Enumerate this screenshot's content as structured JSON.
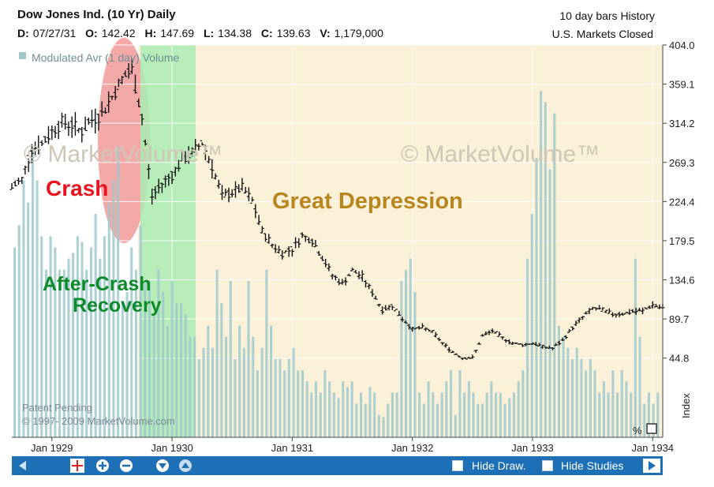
{
  "header": {
    "title": "Dow Jones Ind.  (10 Yr) Daily",
    "right_line1": "10 day bars  History",
    "right_line2": "U.S. Markets Closed",
    "ohlc": [
      {
        "key": "D:",
        "value": "07/27/31"
      },
      {
        "key": "O:",
        "value": "142.42"
      },
      {
        "key": "H:",
        "value": "147.69"
      },
      {
        "key": "L:",
        "value": "134.38"
      },
      {
        "key": "C:",
        "value": "139.63"
      },
      {
        "key": "V:",
        "value": "1,179,000"
      }
    ]
  },
  "legend_label": "Modulated Avr (1 day) Volume",
  "watermark": "© MarketVolume™",
  "patent_line1": "Patent Pending",
  "patent_line2": "© 1997- 2009 MarketVolume.com",
  "percent_label": "%",
  "index_label": "Index",
  "annotations": [
    {
      "text": "Crash",
      "color": "#e8131f"
    },
    {
      "text": "After-Crash",
      "color": "#0d8a2a"
    },
    {
      "text": "Recovery",
      "color": "#0d8a2a"
    },
    {
      "text": "Great Depression",
      "color": "#b8861e"
    }
  ],
  "toolbar": {
    "hide_draw_label": "Hide Draw.",
    "hide_studies_label": "Hide Studies"
  },
  "colors": {
    "plot_bg": "#fbf0d8",
    "crash_region": "#f29a9a",
    "recovery_region": "#a9ecb4",
    "volume_bar": "#9fc9cc",
    "price_bar": "#111111",
    "toolbar": "#1d6fb6"
  },
  "chart_data": {
    "type": "bar",
    "subtype": "ohlc_price_with_volume",
    "title": "Dow Jones Ind.  (10 Yr) Daily",
    "x_tick_labels": [
      "Jan 1929",
      "Jan 1930",
      "Jan 1931",
      "Jan 1932",
      "Jan 1933",
      "Jan 1934"
    ],
    "x_range": [
      "1928-09",
      "1934-02"
    ],
    "y_tick_labels": [
      "404.0",
      "359.1",
      "314.2",
      "269.3",
      "224.4",
      "179.5",
      "134.6",
      "89.7",
      "44.8"
    ],
    "y_ticks": [
      404.0,
      359.1,
      314.2,
      269.3,
      224.4,
      179.5,
      134.6,
      89.7,
      44.8
    ],
    "ylim": [
      -46,
      404
    ],
    "ylabel": "Index",
    "grid": true,
    "regions": [
      {
        "label": "Crash",
        "start": "1929-09",
        "end": "1929-11"
      },
      {
        "label": "After-Crash Recovery",
        "start": "1929-11",
        "end": "1930-05"
      },
      {
        "label": "Great Depression",
        "start": "1930-05",
        "end": "1934-02"
      }
    ],
    "price_series": [
      {
        "x": "1928-09",
        "close": 240
      },
      {
        "x": "1928-10",
        "close": 250
      },
      {
        "x": "1928-11",
        "close": 285
      },
      {
        "x": "1928-12",
        "close": 290
      },
      {
        "x": "1929-01",
        "close": 305
      },
      {
        "x": "1929-02",
        "close": 315
      },
      {
        "x": "1929-03",
        "close": 312
      },
      {
        "x": "1929-04",
        "close": 305
      },
      {
        "x": "1929-05",
        "close": 318
      },
      {
        "x": "1929-06",
        "close": 325
      },
      {
        "x": "1929-07",
        "close": 345
      },
      {
        "x": "1929-08",
        "close": 365
      },
      {
        "x": "1929-09",
        "close": 375
      },
      {
        "x": "1929-10",
        "close": 320
      },
      {
        "x": "1929-11",
        "close": 230
      },
      {
        "x": "1929-12",
        "close": 245
      },
      {
        "x": "1930-01",
        "close": 255
      },
      {
        "x": "1930-02",
        "close": 272
      },
      {
        "x": "1930-03",
        "close": 280
      },
      {
        "x": "1930-04",
        "close": 292
      },
      {
        "x": "1930-05",
        "close": 265
      },
      {
        "x": "1930-06",
        "close": 230
      },
      {
        "x": "1930-07",
        "close": 235
      },
      {
        "x": "1930-08",
        "close": 240
      },
      {
        "x": "1930-09",
        "close": 225
      },
      {
        "x": "1930-10",
        "close": 190
      },
      {
        "x": "1930-11",
        "close": 175
      },
      {
        "x": "1930-12",
        "close": 165
      },
      {
        "x": "1931-01",
        "close": 170
      },
      {
        "x": "1931-02",
        "close": 185
      },
      {
        "x": "1931-03",
        "close": 180
      },
      {
        "x": "1931-04",
        "close": 160
      },
      {
        "x": "1931-05",
        "close": 140
      },
      {
        "x": "1931-06",
        "close": 130
      },
      {
        "x": "1931-07",
        "close": 145
      },
      {
        "x": "1931-08",
        "close": 138
      },
      {
        "x": "1931-09",
        "close": 120
      },
      {
        "x": "1931-10",
        "close": 100
      },
      {
        "x": "1931-11",
        "close": 105
      },
      {
        "x": "1931-12",
        "close": 90
      },
      {
        "x": "1932-01",
        "close": 78
      },
      {
        "x": "1932-02",
        "close": 80
      },
      {
        "x": "1932-03",
        "close": 75
      },
      {
        "x": "1932-04",
        "close": 62
      },
      {
        "x": "1932-05",
        "close": 52
      },
      {
        "x": "1932-06",
        "close": 45
      },
      {
        "x": "1932-07",
        "close": 45
      },
      {
        "x": "1932-08",
        "close": 70
      },
      {
        "x": "1932-09",
        "close": 76
      },
      {
        "x": "1932-10",
        "close": 68
      },
      {
        "x": "1932-11",
        "close": 62
      },
      {
        "x": "1932-12",
        "close": 60
      },
      {
        "x": "1933-01",
        "close": 62
      },
      {
        "x": "1933-02",
        "close": 58
      },
      {
        "x": "1933-03",
        "close": 56
      },
      {
        "x": "1933-04",
        "close": 65
      },
      {
        "x": "1933-05",
        "close": 80
      },
      {
        "x": "1933-06",
        "close": 92
      },
      {
        "x": "1933-07",
        "close": 102
      },
      {
        "x": "1933-08",
        "close": 100
      },
      {
        "x": "1933-09",
        "close": 95
      },
      {
        "x": "1933-10",
        "close": 96
      },
      {
        "x": "1933-11",
        "close": 98
      },
      {
        "x": "1933-12",
        "close": 99
      },
      {
        "x": "1934-01",
        "close": 106
      },
      {
        "x": "1934-02",
        "close": 102
      }
    ],
    "volume_series": {
      "name": "Modulated Avr (1 day) Volume",
      "unit": "relative",
      "values": [
        170,
        190,
        230,
        210,
        260,
        230,
        180,
        150,
        180,
        170,
        150,
        150,
        160,
        165,
        180,
        175,
        150,
        170,
        200,
        160,
        180,
        210,
        230,
        260,
        120,
        130,
        170,
        150,
        190,
        140,
        140,
        110,
        150,
        130,
        100,
        140,
        120,
        120,
        110,
        90,
        90,
        70,
        80,
        100,
        80,
        150,
        120,
        90,
        140,
        70,
        100,
        80,
        140,
        90,
        60,
        80,
        150,
        100,
        70,
        70,
        60,
        70,
        80,
        60,
        60,
        50,
        40,
        50,
        40,
        60,
        50,
        40,
        35,
        50,
        45,
        50,
        30,
        40,
        30,
        45,
        40,
        20,
        18,
        30,
        40,
        40,
        140,
        150,
        160,
        130,
        40,
        30,
        50,
        40,
        30,
        40,
        50,
        60,
        20,
        60,
        40,
        50,
        40,
        30,
        30,
        40,
        50,
        40,
        40,
        30,
        35,
        40,
        50,
        60,
        160,
        200,
        250,
        310,
        300,
        240,
        290,
        100,
        90,
        80,
        70,
        80,
        70,
        60,
        70,
        60,
        40,
        50,
        40,
        60,
        40,
        60,
        50,
        40,
        160,
        90,
        30,
        40,
        30,
        40
      ]
    }
  }
}
